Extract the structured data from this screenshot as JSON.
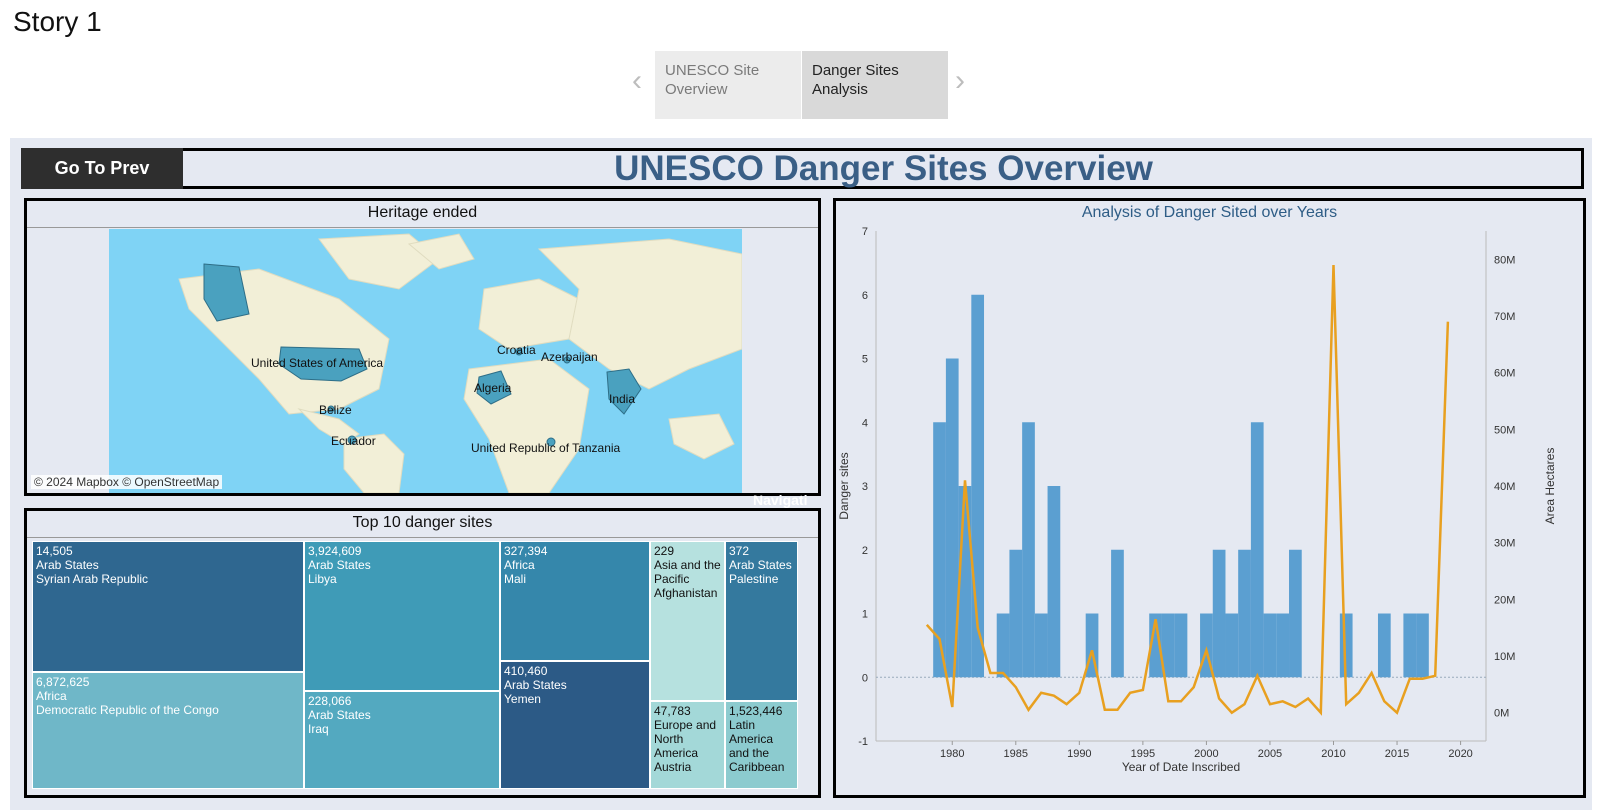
{
  "story": {
    "title": "Story 1",
    "tabs": [
      {
        "label": "UNESCO Site Overview"
      },
      {
        "label": "Danger Sites Analysis"
      }
    ]
  },
  "dashboard": {
    "go_prev_label": "Go To Prev",
    "title": "UNESCO Danger Sites Overview",
    "overlay_text": "Navigati"
  },
  "map": {
    "title": "Heritage ended",
    "credit": "© 2024 Mapbox © OpenStreetMap",
    "labels": [
      "United States of America",
      "Croatia",
      "Azerbaijan",
      "Algeria",
      "India",
      "Belize",
      "Ecuador",
      "United Republic of Tanzania"
    ],
    "colors": {
      "ocean": "#7fd3f5",
      "land": "#f2efd7",
      "highlight": "#4aa1bf"
    }
  },
  "treemap": {
    "title": "Top 10 danger sites",
    "cells": [
      {
        "value": "14,505",
        "region": "Arab States",
        "country": "Syrian Arab Republic",
        "color": "#2f6790"
      },
      {
        "value": "6,872,625",
        "region": "Africa",
        "country": "Democratic Republic of the Congo",
        "color": "#6fb7c8"
      },
      {
        "value": "3,924,609",
        "region": "Arab States",
        "country": "Libya",
        "color": "#3f9bb7"
      },
      {
        "value": "228,066",
        "region": "Arab States",
        "country": "Iraq",
        "color": "#53a9c0"
      },
      {
        "value": "327,394",
        "region": "Africa",
        "country": "Mali",
        "color": "#3587ab"
      },
      {
        "value": "410,460",
        "region": "Arab States",
        "country": "Yemen",
        "color": "#2c5a86"
      },
      {
        "value": "229",
        "region": "Asia and the Pacific",
        "country": "Afghanistan",
        "color": "#b6e1df"
      },
      {
        "value": "47,783",
        "region": "Europe and North America",
        "country": "Austria",
        "color": "#a3d8d8"
      },
      {
        "value": "372",
        "region": "Arab States",
        "country": "Palestine",
        "color": "#34799e"
      },
      {
        "value": "1,523,446",
        "region": "Latin America and the Caribbean",
        "country": "",
        "color": "#8ccbcf"
      }
    ]
  },
  "chart_data": {
    "type": "bar",
    "title": "Analysis of Danger Sited over Years",
    "xlabel": "Year of Date Inscribed",
    "ylabel": "Danger sites",
    "y2label": "Area Hectares",
    "xlim": [
      1974,
      2022
    ],
    "ylim": [
      -1,
      7
    ],
    "y2lim": [
      -5000000,
      85000000
    ],
    "x_ticks": [
      1980,
      1985,
      1990,
      1995,
      2000,
      2005,
      2010,
      2015,
      2020
    ],
    "y_ticks": [
      -1,
      0,
      1,
      2,
      3,
      4,
      5,
      6,
      7
    ],
    "y2_ticks": [
      "0M",
      "10M",
      "20M",
      "30M",
      "40M",
      "50M",
      "60M",
      "70M",
      "80M"
    ],
    "bar_color": "#5b9fd1",
    "line_color": "#e8a020",
    "bars": [
      {
        "x": 1979,
        "y": 4
      },
      {
        "x": 1980,
        "y": 5
      },
      {
        "x": 1981,
        "y": 3
      },
      {
        "x": 1982,
        "y": 6
      },
      {
        "x": 1984,
        "y": 1
      },
      {
        "x": 1985,
        "y": 2
      },
      {
        "x": 1986,
        "y": 4
      },
      {
        "x": 1987,
        "y": 1
      },
      {
        "x": 1988,
        "y": 3
      },
      {
        "x": 1991,
        "y": 1
      },
      {
        "x": 1993,
        "y": 2
      },
      {
        "x": 1996,
        "y": 1
      },
      {
        "x": 1997,
        "y": 1
      },
      {
        "x": 1998,
        "y": 1
      },
      {
        "x": 2000,
        "y": 1
      },
      {
        "x": 2001,
        "y": 2
      },
      {
        "x": 2002,
        "y": 1
      },
      {
        "x": 2003,
        "y": 2
      },
      {
        "x": 2004,
        "y": 4
      },
      {
        "x": 2005,
        "y": 1
      },
      {
        "x": 2006,
        "y": 1
      },
      {
        "x": 2007,
        "y": 2
      },
      {
        "x": 2011,
        "y": 1
      },
      {
        "x": 2014,
        "y": 1
      },
      {
        "x": 2016,
        "y": 1
      },
      {
        "x": 2017,
        "y": 1
      }
    ],
    "line": [
      {
        "x": 1978,
        "y": 15500000
      },
      {
        "x": 1979,
        "y": 13000000
      },
      {
        "x": 1980,
        "y": 1000000
      },
      {
        "x": 1981,
        "y": 41000000
      },
      {
        "x": 1982,
        "y": 15000000
      },
      {
        "x": 1983,
        "y": 7000000
      },
      {
        "x": 1984,
        "y": 7000000
      },
      {
        "x": 1985,
        "y": 4500000
      },
      {
        "x": 1986,
        "y": 500000
      },
      {
        "x": 1987,
        "y": 3500000
      },
      {
        "x": 1988,
        "y": 3000000
      },
      {
        "x": 1989,
        "y": 1500000
      },
      {
        "x": 1990,
        "y": 3500000
      },
      {
        "x": 1991,
        "y": 11000000
      },
      {
        "x": 1992,
        "y": 500000
      },
      {
        "x": 1993,
        "y": 500000
      },
      {
        "x": 1994,
        "y": 3500000
      },
      {
        "x": 1995,
        "y": 4000000
      },
      {
        "x": 1996,
        "y": 16500000
      },
      {
        "x": 1997,
        "y": 2000000
      },
      {
        "x": 1998,
        "y": 2000000
      },
      {
        "x": 1999,
        "y": 4500000
      },
      {
        "x": 2000,
        "y": 11000000
      },
      {
        "x": 2001,
        "y": 2500000
      },
      {
        "x": 2002,
        "y": 0
      },
      {
        "x": 2003,
        "y": 1500000
      },
      {
        "x": 2004,
        "y": 6500000
      },
      {
        "x": 2005,
        "y": 1500000
      },
      {
        "x": 2006,
        "y": 2000000
      },
      {
        "x": 2007,
        "y": 1000000
      },
      {
        "x": 2008,
        "y": 2500000
      },
      {
        "x": 2009,
        "y": 0
      },
      {
        "x": 2010,
        "y": 79000000
      },
      {
        "x": 2011,
        "y": 1500000
      },
      {
        "x": 2012,
        "y": 3500000
      },
      {
        "x": 2013,
        "y": 7000000
      },
      {
        "x": 2014,
        "y": 2000000
      },
      {
        "x": 2015,
        "y": 0
      },
      {
        "x": 2016,
        "y": 6000000
      },
      {
        "x": 2017,
        "y": 6000000
      },
      {
        "x": 2018,
        "y": 6500000
      },
      {
        "x": 2019,
        "y": 69000000
      }
    ]
  }
}
